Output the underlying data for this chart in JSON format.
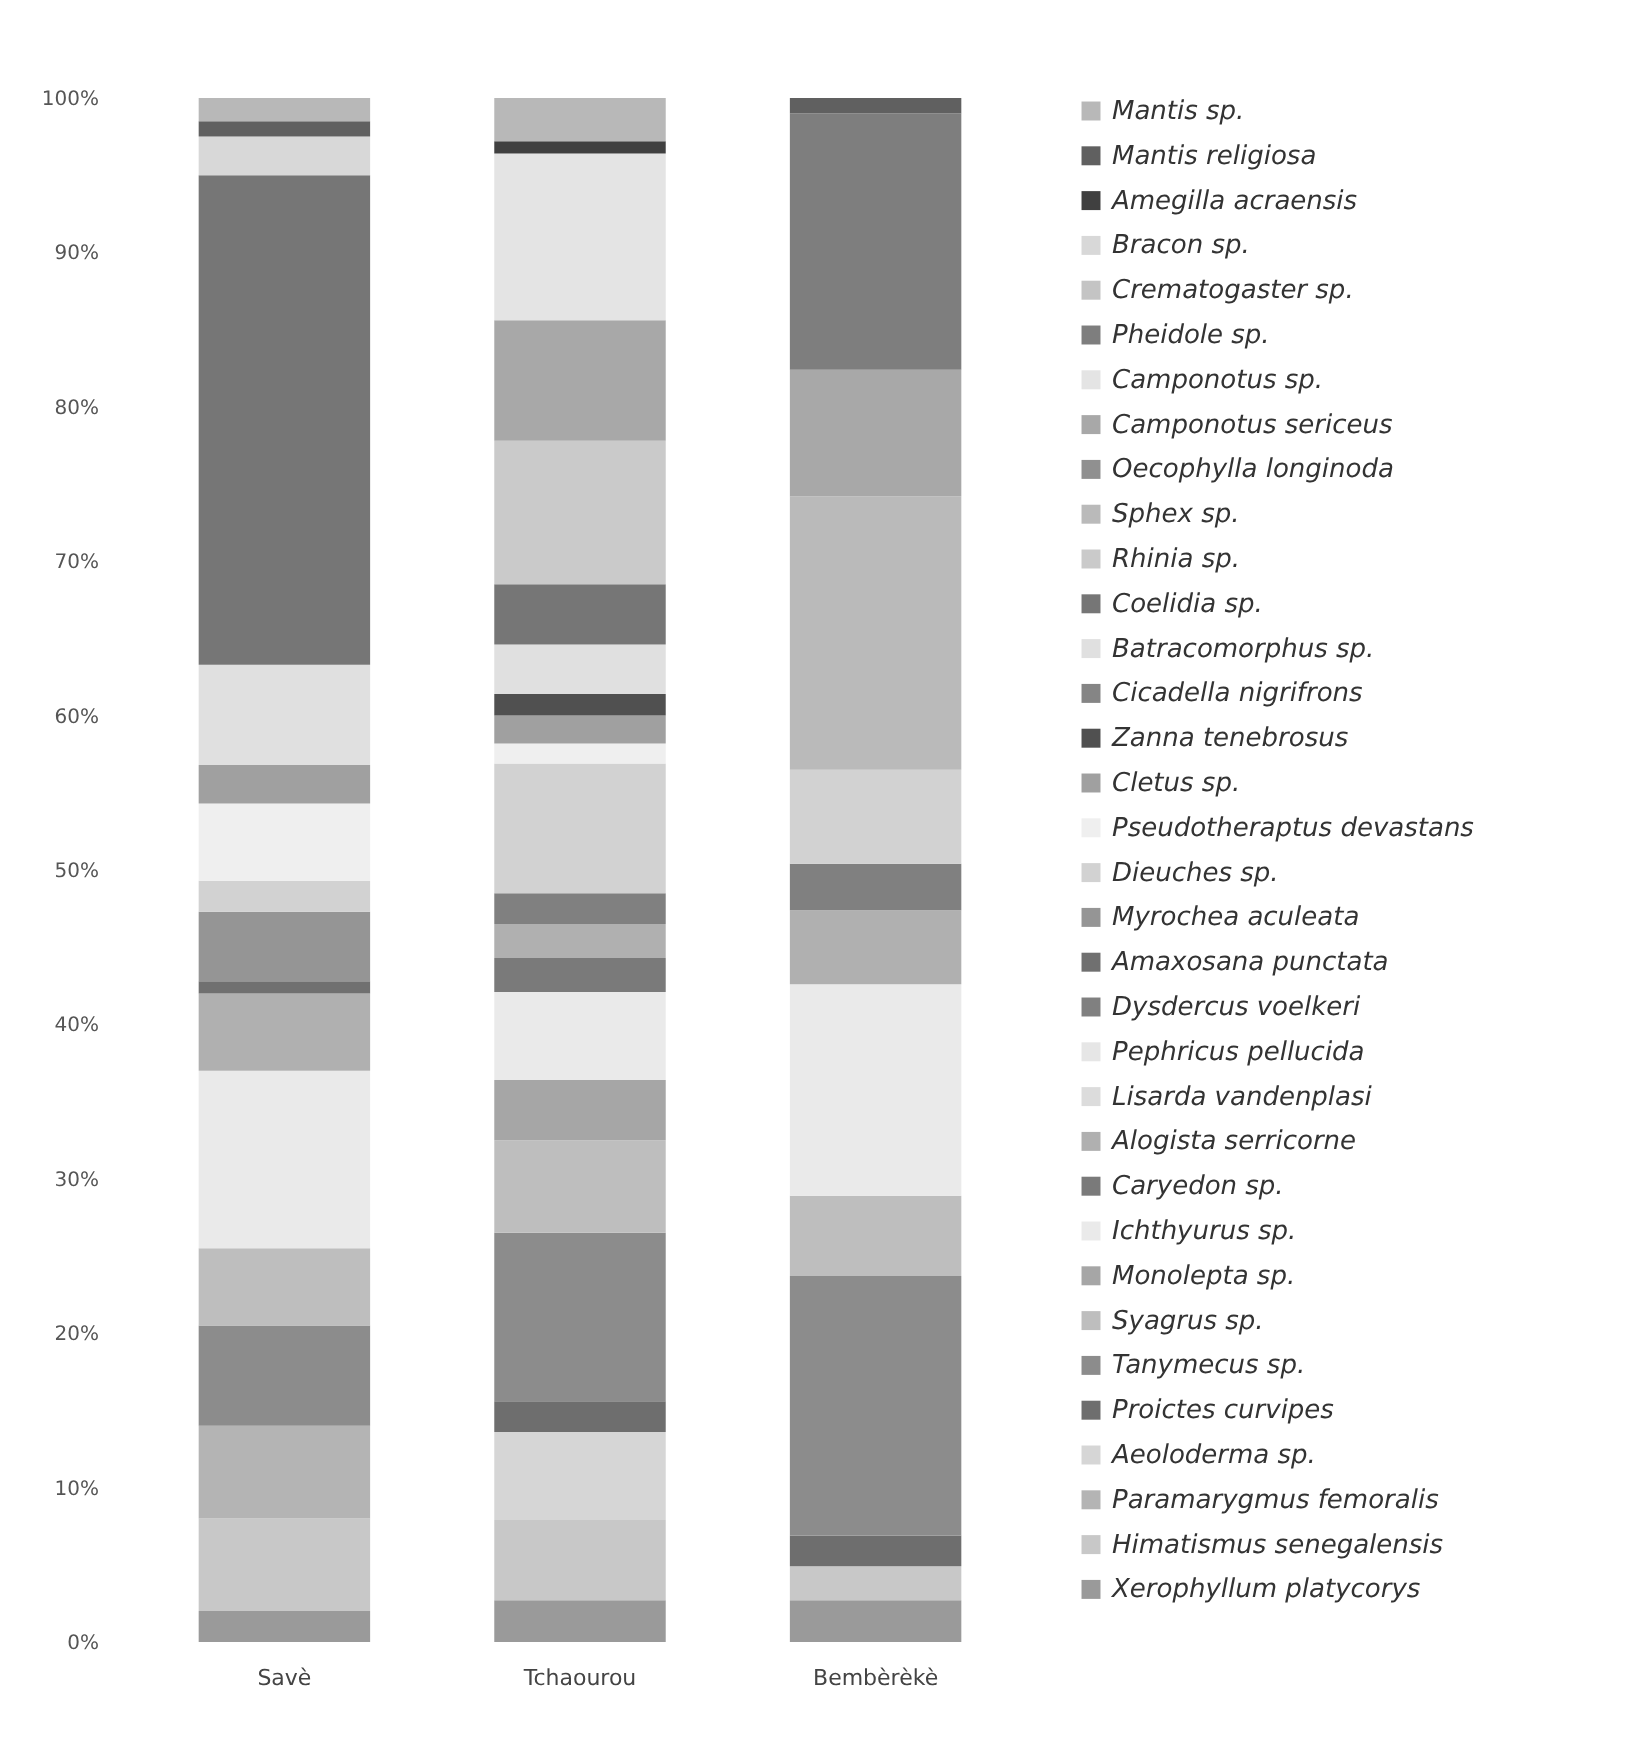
{
  "chart_data": {
    "type": "bar",
    "stacked": true,
    "categories": [
      "Savè",
      "Tchaourou",
      "Bembèrèkè"
    ],
    "ylim": [
      0,
      100
    ],
    "yticks": [
      {
        "value": 0,
        "label": "0%"
      },
      {
        "value": 10,
        "label": "10%"
      },
      {
        "value": 20,
        "label": "20%"
      },
      {
        "value": 30,
        "label": "30%"
      },
      {
        "value": 40,
        "label": "40%"
      },
      {
        "value": 50,
        "label": "50%"
      },
      {
        "value": 60,
        "label": "60%"
      },
      {
        "value": 70,
        "label": "70%"
      },
      {
        "value": 80,
        "label": "80%"
      },
      {
        "value": 90,
        "label": "90%"
      },
      {
        "value": 100,
        "label": "100%"
      }
    ],
    "legend": "right",
    "grid": false,
    "series": [
      {
        "name": "Xerophyllum platycorys",
        "color": "#9a9a9a",
        "values": [
          2,
          2.7,
          2.7
        ]
      },
      {
        "name": "Himatismus senegalensis",
        "color": "#c8c8c8",
        "values": [
          6,
          5.2,
          2.2
        ]
      },
      {
        "name": "Paramarygmus femoralis",
        "color": "#b4b4b4",
        "values": [
          6,
          0,
          0
        ]
      },
      {
        "name": "Aeoloderma sp.",
        "color": "#d6d6d6",
        "values": [
          0,
          5.7,
          0
        ]
      },
      {
        "name": "Proictes curvipes",
        "color": "#6e6e6e",
        "values": [
          0,
          2,
          2
        ]
      },
      {
        "name": "Tanymecus sp.",
        "color": "#8c8c8c",
        "values": [
          6.5,
          10.9,
          16.8
        ]
      },
      {
        "name": "Syagrus sp.",
        "color": "#bebebe",
        "values": [
          5,
          6,
          5.2
        ]
      },
      {
        "name": "Monolepta sp.",
        "color": "#a6a6a6",
        "values": [
          0,
          3.9,
          0
        ]
      },
      {
        "name": "Ichthyurus sp.",
        "color": "#eaeaea",
        "values": [
          11.5,
          5.7,
          13.7
        ]
      },
      {
        "name": "Caryedon sp.",
        "color": "#7a7a7a",
        "values": [
          0,
          2.2,
          0
        ]
      },
      {
        "name": "Alogista serricorne",
        "color": "#b0b0b0",
        "values": [
          5,
          2.2,
          4.8
        ]
      },
      {
        "name": "Lisarda vandenplasi",
        "color": "#dcdcdc",
        "values": [
          0,
          0,
          0
        ]
      },
      {
        "name": "Pephricus pellucida",
        "color": "#e6e6e6",
        "values": [
          0,
          0,
          0
        ]
      },
      {
        "name": "Dysdercus voelkeri",
        "color": "#808080",
        "values": [
          0,
          2,
          3
        ]
      },
      {
        "name": "Amaxosana punctata",
        "color": "#707070",
        "values": [
          0.8,
          0,
          0
        ]
      },
      {
        "name": "Myrochea aculeata",
        "color": "#959595",
        "values": [
          4.5,
          0,
          0
        ]
      },
      {
        "name": "Dieuches sp.",
        "color": "#d2d2d2",
        "values": [
          2,
          8.4,
          6.1
        ]
      },
      {
        "name": "Pseudotheraptus devastans",
        "color": "#efefef",
        "values": [
          5,
          1.3,
          0
        ]
      },
      {
        "name": "Cletus sp.",
        "color": "#a0a0a0",
        "values": [
          2.5,
          1.8,
          0
        ]
      },
      {
        "name": "Zanna tenebrosus",
        "color": "#505050",
        "values": [
          0,
          1.4,
          0
        ]
      },
      {
        "name": "Cicadella nigrifrons",
        "color": "#858585",
        "values": [
          0,
          0,
          0
        ]
      },
      {
        "name": "Batracomorphus sp.",
        "color": "#e0e0e0",
        "values": [
          6.5,
          3.2,
          0
        ]
      },
      {
        "name": "Coelidia sp.",
        "color": "#767676",
        "values": [
          31.7,
          3.9,
          0
        ]
      },
      {
        "name": "Rhinia sp.",
        "color": "#cacaca",
        "values": [
          0,
          9.3,
          0
        ]
      },
      {
        "name": "Sphex sp.",
        "color": "#bababa",
        "values": [
          0,
          0,
          17.7
        ]
      },
      {
        "name": "Oecophylla longinoda",
        "color": "#909090",
        "values": [
          0,
          0,
          0
        ]
      },
      {
        "name": "Camponotus sericeus",
        "color": "#a8a8a8",
        "values": [
          0,
          7.8,
          8.2
        ]
      },
      {
        "name": "Camponotus sp.",
        "color": "#e4e4e4",
        "values": [
          0,
          10.8,
          0
        ]
      },
      {
        "name": "Pheidole sp.",
        "color": "#7e7e7e",
        "values": [
          0,
          0,
          16.6
        ]
      },
      {
        "name": "Crematogaster sp.",
        "color": "#c4c4c4",
        "values": [
          0,
          0,
          0
        ]
      },
      {
        "name": "Bracon sp.",
        "color": "#d8d8d8",
        "values": [
          2.5,
          0,
          0
        ]
      },
      {
        "name": "Amegilla acraensis",
        "color": "#404040",
        "values": [
          0,
          0.8,
          0
        ]
      },
      {
        "name": "Mantis religiosa",
        "color": "#606060",
        "values": [
          1,
          0,
          1
        ]
      },
      {
        "name": "Mantis sp.",
        "color": "#b8b8b8",
        "values": [
          1.5,
          2.8,
          0
        ]
      }
    ]
  }
}
